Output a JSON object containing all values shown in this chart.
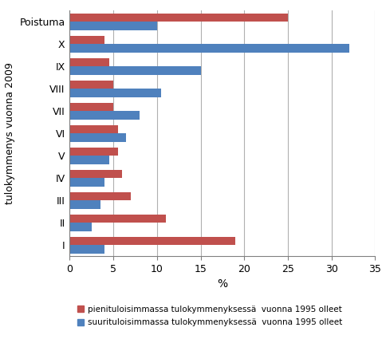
{
  "categories": [
    "I",
    "II",
    "III",
    "IV",
    "V",
    "VI",
    "VII",
    "VIII",
    "IX",
    "X",
    "Poistuma"
  ],
  "pieni": [
    19,
    11,
    7,
    6,
    5.5,
    5.5,
    5,
    5,
    4.5,
    4,
    25
  ],
  "suuri": [
    4,
    2.5,
    3.5,
    4,
    4.5,
    6.5,
    8,
    10.5,
    15,
    32,
    10
  ],
  "pieni_color": "#c0504d",
  "suuri_color": "#4f81bd",
  "xlabel": "%",
  "ylabel": "tulokymmenys vuonna 2009",
  "xlim": [
    0,
    35
  ],
  "xticks": [
    0,
    5,
    10,
    15,
    20,
    25,
    30,
    35
  ],
  "legend_pieni": "pienituloisimmassa tulokymmenyksessä  vuonna 1995 olleet",
  "legend_suuri": "suurituloisimmassa tulokymmenyksessä  vuonna 1995 olleet",
  "bar_height": 0.38,
  "grid_color": "#b0b0b0",
  "background_color": "#ffffff",
  "border_color": "#808080"
}
